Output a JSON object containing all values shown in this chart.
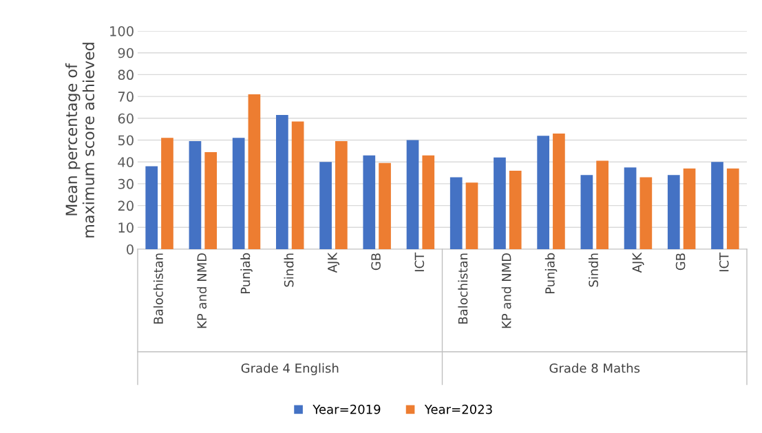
{
  "chart_data": {
    "type": "bar",
    "ylabel": "Mean percentage of\nmaximum score achieved",
    "categories": [
      "Balochistan",
      "KP and NMD",
      "Punjab",
      "Sindh",
      "AJK",
      "GB",
      "ICT",
      "Balochistan",
      "KP and NMD",
      "Punjab",
      "Sindh",
      "AJK",
      "GB",
      "ICT"
    ],
    "annotations": [
      "Grade 4 English",
      "Grade 8 Maths"
    ],
    "series": [
      {
        "name": "Year=2019",
        "color": "#4472c4",
        "values": [
          38,
          49.5,
          51,
          61.5,
          40,
          43,
          50,
          33,
          42,
          52,
          34,
          37.5,
          34,
          40
        ]
      },
      {
        "name": "Year=2023",
        "color": "#ed7d31",
        "values": [
          51,
          44.5,
          71,
          58.5,
          49.5,
          39.5,
          43,
          30.5,
          36,
          53,
          40.5,
          33,
          37,
          37
        ]
      }
    ],
    "ylim": [
      0,
      100
    ],
    "yticks": [
      0,
      10,
      20,
      30,
      40,
      50,
      60,
      70,
      80,
      90,
      100
    ],
    "grid": "y",
    "legend": "bottom"
  }
}
